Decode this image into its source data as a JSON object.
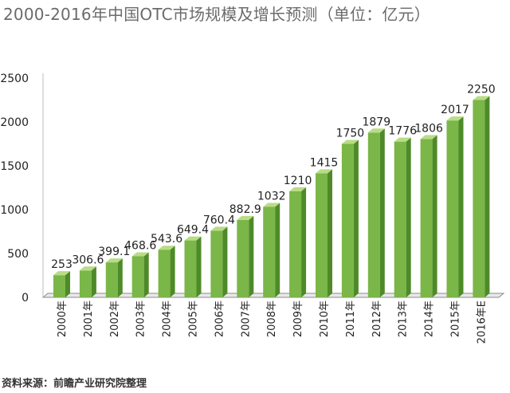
{
  "title": "2000-2016年中国OTC市场规模及增长预测（单位：亿元）",
  "source": "资料来源：前瞻产业研究院整理",
  "colors": {
    "bar_front": "#7ab648",
    "bar_top": "#b9dc86",
    "bar_side": "#4f8a29",
    "floor": "#8a8a8a"
  },
  "chart_data": {
    "type": "bar",
    "title": "2000-2016年中国OTC市场规模及增长预测（单位：亿元）",
    "xlabel": "",
    "ylabel": "",
    "ylim": [
      0,
      2500
    ],
    "yticks": [
      0,
      500,
      1000,
      1500,
      2000,
      2500
    ],
    "grid": false,
    "legend": "none",
    "categories": [
      "2000年",
      "2001年",
      "2002年",
      "2003年",
      "2004年",
      "2005年",
      "2006年",
      "2007年",
      "2008年",
      "2009年",
      "2010年",
      "2011年",
      "2012年",
      "2013年",
      "2014年",
      "2015年",
      "2016年E"
    ],
    "values": [
      253,
      306.6,
      399.1,
      468.6,
      543.6,
      649.4,
      760.4,
      882.9,
      1032,
      1210,
      1415,
      1750,
      1879,
      1776,
      1806,
      2017,
      2250
    ],
    "data_labels": [
      "253",
      "306.6",
      "399.1",
      "468.6",
      "543.6",
      "649.4",
      "760.4",
      "882.9",
      "1032",
      "1210",
      "1415",
      "1750",
      "1879",
      "1776",
      "1806",
      "2017",
      "2250"
    ]
  }
}
